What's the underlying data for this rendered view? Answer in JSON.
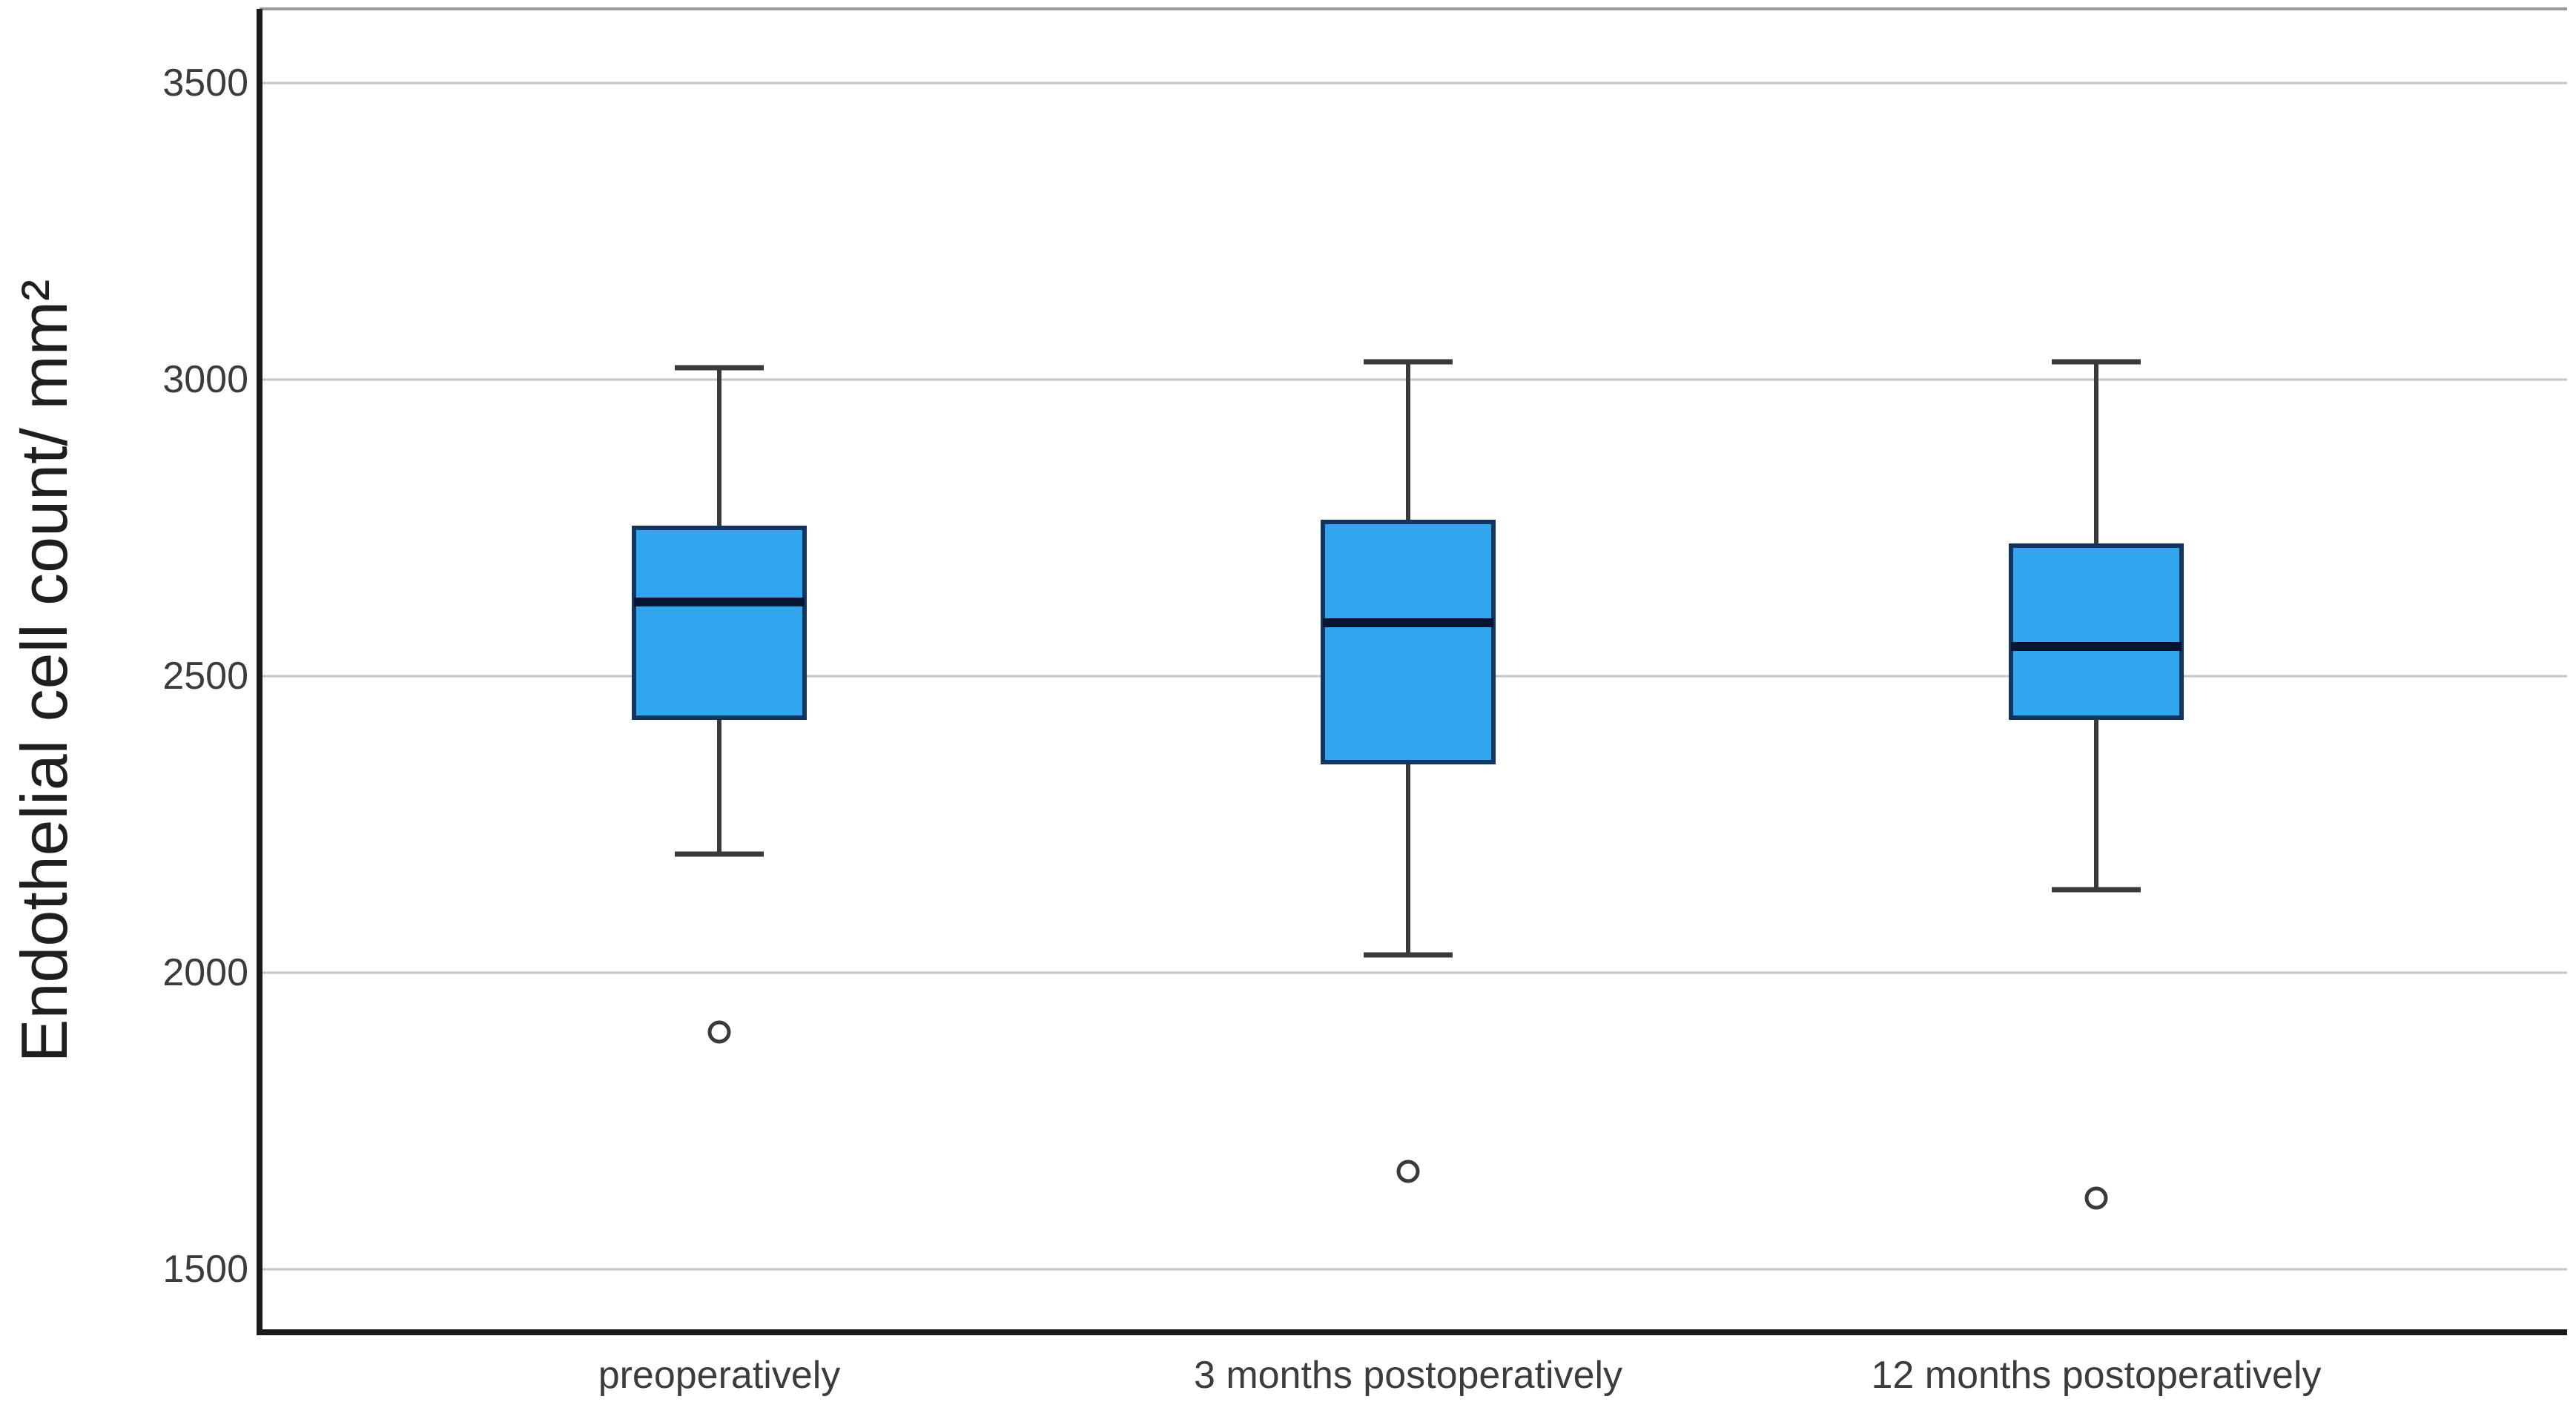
{
  "chart_data": {
    "type": "boxplot",
    "title": "",
    "xlabel": "",
    "ylabel": "Endothelial cell count/ mm²",
    "categories": [
      "preoperatively",
      "3 months postoperatively",
      "12 months postoperatively"
    ],
    "y_ticks": [
      1500,
      2000,
      2500,
      3000,
      3500
    ],
    "ylim": [
      1395,
      3625
    ],
    "grid": true,
    "legend": false,
    "series": [
      {
        "category": "preoperatively",
        "whisker_low": 2200,
        "q1": 2430,
        "median": 2625,
        "q3": 2750,
        "whisker_high": 3020,
        "outliers": [
          1900
        ]
      },
      {
        "category": "3 months postoperatively",
        "whisker_low": 2030,
        "q1": 2355,
        "median": 2590,
        "q3": 2760,
        "whisker_high": 3030,
        "outliers": [
          1665
        ]
      },
      {
        "category": "12 months postoperatively",
        "whisker_low": 2140,
        "q1": 2430,
        "median": 2550,
        "q3": 2720,
        "whisker_high": 3030,
        "outliers": [
          1620
        ]
      }
    ],
    "colors": {
      "box_fill": "#33a4ee",
      "box_border": "#12365f",
      "median_line": "#081534",
      "whisker": "#3a3a3a",
      "outlier": "#3a3a3a",
      "gridline": "#c6c6c6",
      "top_border": "#9a9a9a",
      "axis": "#1b1b1b",
      "label": "#3c3c3c"
    }
  }
}
